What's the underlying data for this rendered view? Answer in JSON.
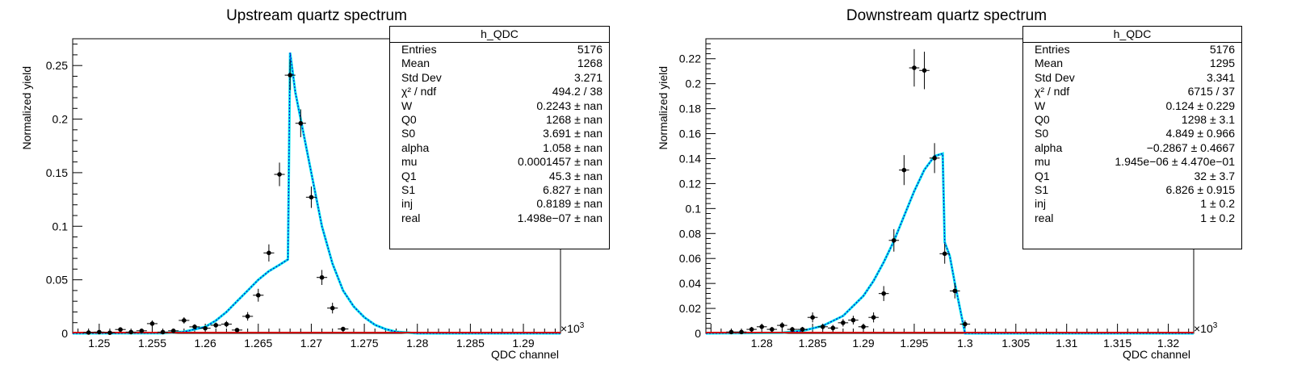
{
  "chart_data": [
    {
      "type": "scatter",
      "title": "Upstream quartz spectrum",
      "xlabel": "QDC channel",
      "ylabel": "Normalized yield",
      "x_multiplier": "×10",
      "x_multiplier_exp": "3",
      "xlim": [
        1.2475,
        1.2935
      ],
      "ylim": [
        0,
        0.275
      ],
      "x_ticks": [
        "1.25",
        "1.255",
        "1.26",
        "1.265",
        "1.27",
        "1.275",
        "1.28",
        "1.285",
        "1.29"
      ],
      "y_ticks": [
        "0",
        "0.05",
        "0.1",
        "0.15",
        "0.2",
        "0.25"
      ],
      "grid": false,
      "points": [
        {
          "x": 1.249,
          "y": 0.0008,
          "err": 0.0008
        },
        {
          "x": 1.25,
          "y": 0.0012,
          "err": 0.0012
        },
        {
          "x": 1.251,
          "y": 0.0006,
          "err": 0.0006
        },
        {
          "x": 1.252,
          "y": 0.0036,
          "err": 0.002
        },
        {
          "x": 1.253,
          "y": 0.0012,
          "err": 0.0012
        },
        {
          "x": 1.254,
          "y": 0.0024,
          "err": 0.0015
        },
        {
          "x": 1.255,
          "y": 0.0091,
          "err": 0.003
        },
        {
          "x": 1.256,
          "y": 0.0012,
          "err": 0.0012
        },
        {
          "x": 1.257,
          "y": 0.0024,
          "err": 0.0015
        },
        {
          "x": 1.258,
          "y": 0.0121,
          "err": 0.003
        },
        {
          "x": 1.259,
          "y": 0.0061,
          "err": 0.0025
        },
        {
          "x": 1.26,
          "y": 0.0048,
          "err": 0.002
        },
        {
          "x": 1.261,
          "y": 0.0076,
          "err": 0.0025
        },
        {
          "x": 1.262,
          "y": 0.0086,
          "err": 0.003
        },
        {
          "x": 1.263,
          "y": 0.0031,
          "err": 0.002
        },
        {
          "x": 1.264,
          "y": 0.0159,
          "err": 0.004
        },
        {
          "x": 1.265,
          "y": 0.0356,
          "err": 0.006
        },
        {
          "x": 1.266,
          "y": 0.0751,
          "err": 0.008
        },
        {
          "x": 1.267,
          "y": 0.1484,
          "err": 0.011
        },
        {
          "x": 1.268,
          "y": 0.241,
          "err": 0.014
        },
        {
          "x": 1.269,
          "y": 0.1961,
          "err": 0.013
        },
        {
          "x": 1.27,
          "y": 0.1271,
          "err": 0.01
        },
        {
          "x": 1.271,
          "y": 0.0522,
          "err": 0.007
        },
        {
          "x": 1.272,
          "y": 0.0236,
          "err": 0.005
        },
        {
          "x": 1.273,
          "y": 0.0041,
          "err": 0.002
        }
      ],
      "fit_curve": [
        [
          1.2475,
          0.0
        ],
        [
          1.256,
          0.0002
        ],
        [
          1.258,
          0.0015
        ],
        [
          1.26,
          0.006
        ],
        [
          1.261,
          0.012
        ],
        [
          1.262,
          0.02
        ],
        [
          1.263,
          0.03
        ],
        [
          1.264,
          0.04
        ],
        [
          1.265,
          0.05
        ],
        [
          1.266,
          0.058
        ],
        [
          1.267,
          0.064
        ],
        [
          1.2678,
          0.069
        ],
        [
          1.268,
          0.262
        ],
        [
          1.2685,
          0.225
        ],
        [
          1.269,
          0.2
        ],
        [
          1.27,
          0.15
        ],
        [
          1.271,
          0.1
        ],
        [
          1.272,
          0.065
        ],
        [
          1.273,
          0.04
        ],
        [
          1.274,
          0.025
        ],
        [
          1.275,
          0.015
        ],
        [
          1.276,
          0.008
        ],
        [
          1.277,
          0.004
        ],
        [
          1.278,
          0.0015
        ],
        [
          1.28,
          0.0
        ],
        [
          1.2935,
          0.0
        ]
      ],
      "stats": {
        "title": "h_QDC",
        "rows": [
          {
            "label": "Entries",
            "value": "5176"
          },
          {
            "label": "Mean",
            "value": "1268"
          },
          {
            "label": "Std Dev",
            "value": "3.271"
          },
          {
            "label": "χ² / ndf",
            "value": "494.2 / 38"
          },
          {
            "label": "W",
            "value": "0.2243 ± nan"
          },
          {
            "label": "Q0",
            "value": "1268 ± nan"
          },
          {
            "label": "S0",
            "value": "3.691 ± nan"
          },
          {
            "label": "alpha",
            "value": "1.058 ± nan"
          },
          {
            "label": "mu",
            "value": "0.0001457 ± nan"
          },
          {
            "label": "Q1",
            "value": "45.3 ± nan"
          },
          {
            "label": "S1",
            "value": "6.827 ± nan"
          },
          {
            "label": "inj",
            "value": "0.8189 ± nan"
          },
          {
            "label": "real",
            "value": "1.498e−07 ± nan"
          }
        ]
      },
      "colors": {
        "points": "#000000",
        "fit": "#00e5ee",
        "fit_dash": "#0000cc",
        "baseline": "#cc0000"
      }
    },
    {
      "type": "scatter",
      "title": "Downstream quartz spectrum",
      "xlabel": "QDC channel",
      "ylabel": "Normalized yield",
      "x_multiplier": "×10",
      "x_multiplier_exp": "3",
      "xlim": [
        1.2745,
        1.3225
      ],
      "ylim": [
        0,
        0.236
      ],
      "x_ticks": [
        "1.28",
        "1.285",
        "1.29",
        "1.295",
        "1.3",
        "1.305",
        "1.31",
        "1.315",
        "1.32"
      ],
      "y_ticks": [
        "0",
        "0.02",
        "0.04",
        "0.06",
        "0.08",
        "0.1",
        "0.12",
        "0.14",
        "0.16",
        "0.18",
        "0.2",
        "0.22"
      ],
      "grid": false,
      "points": [
        {
          "x": 1.277,
          "y": 0.0011,
          "err": 0.001
        },
        {
          "x": 1.278,
          "y": 0.0011,
          "err": 0.001
        },
        {
          "x": 1.279,
          "y": 0.0032,
          "err": 0.002
        },
        {
          "x": 1.28,
          "y": 0.0053,
          "err": 0.002
        },
        {
          "x": 1.281,
          "y": 0.0032,
          "err": 0.002
        },
        {
          "x": 1.282,
          "y": 0.0064,
          "err": 0.0025
        },
        {
          "x": 1.283,
          "y": 0.0032,
          "err": 0.002
        },
        {
          "x": 1.284,
          "y": 0.0032,
          "err": 0.002
        },
        {
          "x": 1.285,
          "y": 0.0128,
          "err": 0.004
        },
        {
          "x": 1.286,
          "y": 0.0053,
          "err": 0.0025
        },
        {
          "x": 1.287,
          "y": 0.0043,
          "err": 0.0025
        },
        {
          "x": 1.288,
          "y": 0.0085,
          "err": 0.003
        },
        {
          "x": 1.289,
          "y": 0.0106,
          "err": 0.0035
        },
        {
          "x": 1.29,
          "y": 0.0053,
          "err": 0.0025
        },
        {
          "x": 1.291,
          "y": 0.0128,
          "err": 0.004
        },
        {
          "x": 1.292,
          "y": 0.0319,
          "err": 0.006
        },
        {
          "x": 1.293,
          "y": 0.0745,
          "err": 0.009
        },
        {
          "x": 1.294,
          "y": 0.1308,
          "err": 0.012
        },
        {
          "x": 1.295,
          "y": 0.2127,
          "err": 0.015
        },
        {
          "x": 1.296,
          "y": 0.2106,
          "err": 0.015
        },
        {
          "x": 1.297,
          "y": 0.1404,
          "err": 0.012
        },
        {
          "x": 1.298,
          "y": 0.0638,
          "err": 0.008
        },
        {
          "x": 1.299,
          "y": 0.034,
          "err": 0.006
        },
        {
          "x": 1.3,
          "y": 0.0074,
          "err": 0.003
        }
      ],
      "fit_curve": [
        [
          1.2745,
          0.0
        ],
        [
          1.282,
          0.0005
        ],
        [
          1.284,
          0.002
        ],
        [
          1.286,
          0.006
        ],
        [
          1.288,
          0.014
        ],
        [
          1.29,
          0.03
        ],
        [
          1.291,
          0.042
        ],
        [
          1.292,
          0.057
        ],
        [
          1.293,
          0.074
        ],
        [
          1.294,
          0.094
        ],
        [
          1.295,
          0.114
        ],
        [
          1.296,
          0.131
        ],
        [
          1.297,
          0.142
        ],
        [
          1.2978,
          0.144
        ],
        [
          1.298,
          0.073
        ],
        [
          1.2985,
          0.062
        ],
        [
          1.299,
          0.04
        ],
        [
          1.2995,
          0.02
        ],
        [
          1.3,
          0.0
        ],
        [
          1.3225,
          0.0
        ]
      ],
      "stats": {
        "title": "h_QDC",
        "rows": [
          {
            "label": "Entries",
            "value": "5176"
          },
          {
            "label": "Mean",
            "value": "1295"
          },
          {
            "label": "Std Dev",
            "value": "3.341"
          },
          {
            "label": "χ² / ndf",
            "value": "6715 / 37"
          },
          {
            "label": "W",
            "value": "0.124 ± 0.229"
          },
          {
            "label": "Q0",
            "value": "1298 ± 3.1"
          },
          {
            "label": "S0",
            "value": "4.849 ± 0.966"
          },
          {
            "label": "alpha",
            "value": "−0.2867 ± 0.4667"
          },
          {
            "label": "mu",
            "value": "1.945e−06 ± 4.470e−01"
          },
          {
            "label": "Q1",
            "value": "32 ± 3.7"
          },
          {
            "label": "S1",
            "value": "6.826 ± 0.915"
          },
          {
            "label": "inj",
            "value": "1 ± 0.2"
          },
          {
            "label": "real",
            "value": "1 ± 0.2"
          }
        ]
      },
      "colors": {
        "points": "#000000",
        "fit": "#00e5ee",
        "fit_dash": "#0000cc",
        "baseline": "#cc0000"
      }
    }
  ]
}
